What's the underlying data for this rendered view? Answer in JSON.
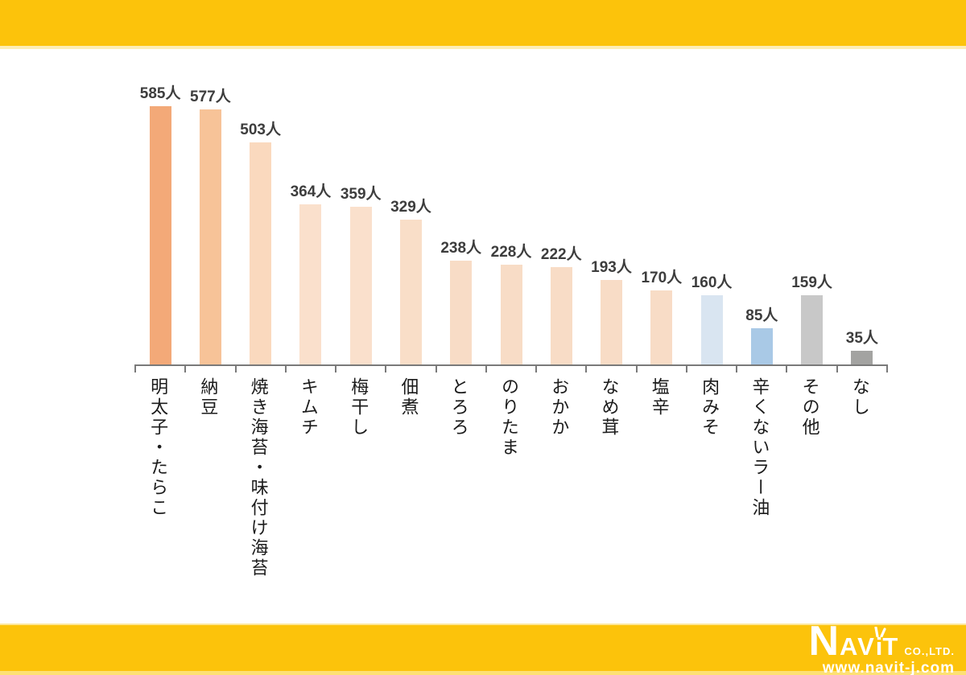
{
  "frame": {
    "brand_color": "#FCC30B",
    "brand_edge_color": "#FDE074"
  },
  "chart_data": {
    "type": "bar",
    "title": "",
    "xlabel": "",
    "ylabel": "",
    "unit": "人",
    "ylim": [
      0,
      650
    ],
    "grid": false,
    "legend": false,
    "categories": [
      "明太子・たらこ",
      "納豆",
      "焼き海苔・味付け海苔",
      "キムチ",
      "梅干し",
      "佃煮",
      "とろろ",
      "のりたま",
      "おかか",
      "なめ茸",
      "塩辛",
      "肉みそ",
      "辛くないラー油",
      "その他",
      "なし"
    ],
    "values": [
      585,
      577,
      503,
      364,
      359,
      329,
      238,
      228,
      222,
      193,
      170,
      160,
      85,
      159,
      35
    ],
    "value_labels": [
      "585人",
      "577人",
      "503人",
      "364人",
      "359人",
      "329人",
      "238人",
      "228人",
      "222人",
      "193人",
      "170人",
      "160人",
      "85人",
      "159人",
      "35人"
    ],
    "bar_colors": [
      "#F3A978",
      "#F7C398",
      "#FAD9BE",
      "#FAE0CC",
      "#FAE0CC",
      "#F9DEC8",
      "#F8DCC6",
      "#F8DCC6",
      "#F8DCC6",
      "#F8DCC6",
      "#F8DCC6",
      "#D9E5F1",
      "#A9C9E6",
      "#C8C8C8",
      "#A3A3A1"
    ],
    "axis_color": "#7a7a7a"
  },
  "logo": {
    "n": "N",
    "av": "AV",
    "i": "i",
    "t": "T",
    "suffix": "CO.,LTD.",
    "url": "www.navit-j.com"
  }
}
